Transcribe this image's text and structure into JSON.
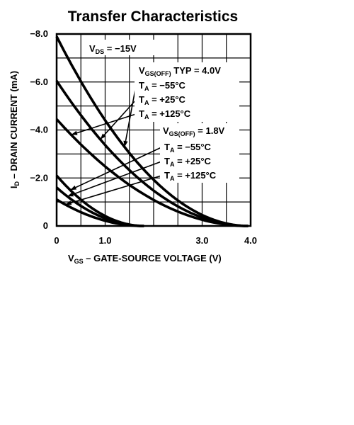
{
  "chart_data": {
    "type": "line",
    "title": "Transfer Characteristics",
    "xlabel": {
      "main": "V",
      "sub": "GS",
      "rest": " – GATE-SOURCE VOLTAGE (V)"
    },
    "ylabel": {
      "main": "I",
      "sub": "D",
      "rest": " – DRAIN CURRENT (mA)"
    },
    "xlim": [
      0,
      4
    ],
    "ylim": [
      0,
      8
    ],
    "x_ticks": [
      {
        "value": 0,
        "label": "0"
      },
      {
        "value": 1,
        "label": "1.0"
      },
      {
        "value": 3,
        "label": "3.0"
      },
      {
        "value": 4,
        "label": "4.0"
      }
    ],
    "y_ticks": [
      {
        "value": 8,
        "label": "−8.0"
      },
      {
        "value": 6,
        "label": "−6.0"
      },
      {
        "value": 4,
        "label": "−4.0"
      },
      {
        "value": 2,
        "label": "−2.0"
      },
      {
        "value": 0,
        "label": "0"
      }
    ],
    "grid": true,
    "condition": {
      "main": "V",
      "sub": "DS",
      "rest": " = −15V"
    },
    "groups": [
      {
        "label": {
          "main": "V",
          "sub": "GS(OFF)",
          "rest": " TYP = 4.0V"
        },
        "series": [
          {
            "name": "T_A = −55°C",
            "label": {
              "main": "T",
              "sub": "A",
              "rest": " = −55°C"
            },
            "vp": 3.95,
            "idss": 7.9
          },
          {
            "name": "T_A = +25°C",
            "label": {
              "main": "T",
              "sub": "A",
              "rest": " = +25°C"
            },
            "vp": 3.95,
            "idss": 6.05
          },
          {
            "name": "T_A = +125°C",
            "label": {
              "main": "T",
              "sub": "A",
              "rest": " = +125°C"
            },
            "vp": 3.95,
            "idss": 4.45
          }
        ]
      },
      {
        "label": {
          "main": "V",
          "sub": "GS(OFF)",
          "rest": " = 1.8V"
        },
        "series": [
          {
            "name": "T_A = −55°C",
            "label": {
              "main": "T",
              "sub": "A",
              "rest": " = −55°C"
            },
            "vp": 1.8,
            "idss": 2.1
          },
          {
            "name": "T_A = +25°C",
            "label": {
              "main": "T",
              "sub": "A",
              "rest": " = +25°C"
            },
            "vp": 1.8,
            "idss": 1.6
          },
          {
            "name": "T_A = +125°C",
            "label": {
              "main": "T",
              "sub": "A",
              "rest": " = +125°C"
            },
            "vp": 1.8,
            "idss": 1.1
          }
        ]
      }
    ]
  }
}
